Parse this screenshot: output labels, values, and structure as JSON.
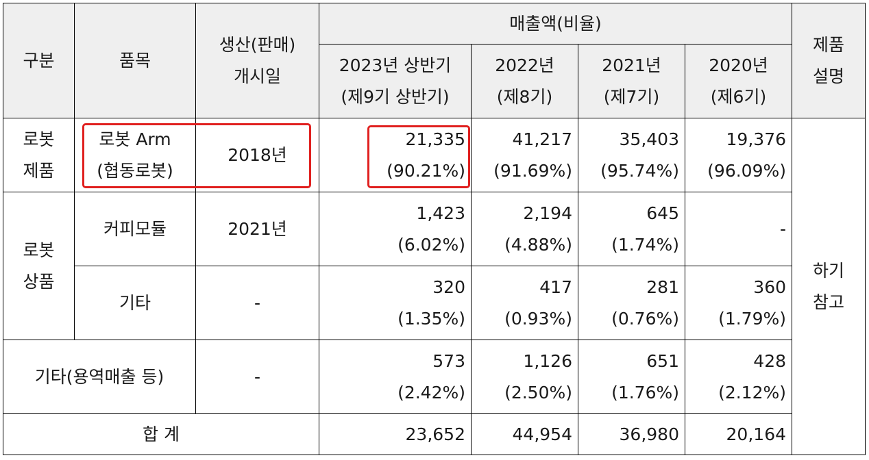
{
  "table": {
    "header": {
      "category": "구분",
      "item": "품목",
      "launch": [
        "생산(판매)",
        "개시일"
      ],
      "sales": "매출액(비율)",
      "periods": [
        [
          "2023년 상반기",
          "(제9기 상반기)"
        ],
        [
          "2022년",
          "(제8기)"
        ],
        [
          "2021년",
          "(제7기)"
        ],
        [
          "2020년",
          "(제6기)"
        ]
      ],
      "desc": [
        "제품",
        "설명"
      ]
    },
    "rows": {
      "robot_product": {
        "category": [
          "로봇",
          "제품"
        ],
        "item": [
          "로봇 Arm",
          "(협동로봇)"
        ],
        "launch": "2018년",
        "values": [
          [
            "21,335",
            "(90.21%)"
          ],
          [
            "41,217",
            "(91.69%)"
          ],
          [
            "35,403",
            "(95.74%)"
          ],
          [
            "19,376",
            "(96.09%)"
          ]
        ]
      },
      "robot_goods": {
        "category": [
          "로봇",
          "상품"
        ],
        "coffee": {
          "item": "커피모듈",
          "launch": "2021년",
          "values": [
            [
              "1,423",
              "(6.02%)"
            ],
            [
              "2,194",
              "(4.88%)"
            ],
            [
              "645",
              "(1.74%)"
            ],
            [
              "-",
              ""
            ]
          ]
        },
        "other": {
          "item": "기타",
          "launch": "-",
          "values": [
            [
              "320",
              "(1.35%)"
            ],
            [
              "417",
              "(0.93%)"
            ],
            [
              "281",
              "(0.76%)"
            ],
            [
              "360",
              "(1.79%)"
            ]
          ]
        }
      },
      "service": {
        "label": "기타(용역매출 등)",
        "launch": "-",
        "values": [
          [
            "573",
            "(2.42%)"
          ],
          [
            "1,126",
            "(2.50%)"
          ],
          [
            "651",
            "(1.76%)"
          ],
          [
            "428",
            "(2.12%)"
          ]
        ]
      },
      "total": {
        "label": "합 계",
        "values": [
          "23,652",
          "44,954",
          "36,980",
          "20,164"
        ]
      }
    },
    "desc_note": [
      "하기",
      "참고"
    ]
  },
  "colors": {
    "header_bg": "#efefef",
    "highlight": "#e0201f"
  }
}
